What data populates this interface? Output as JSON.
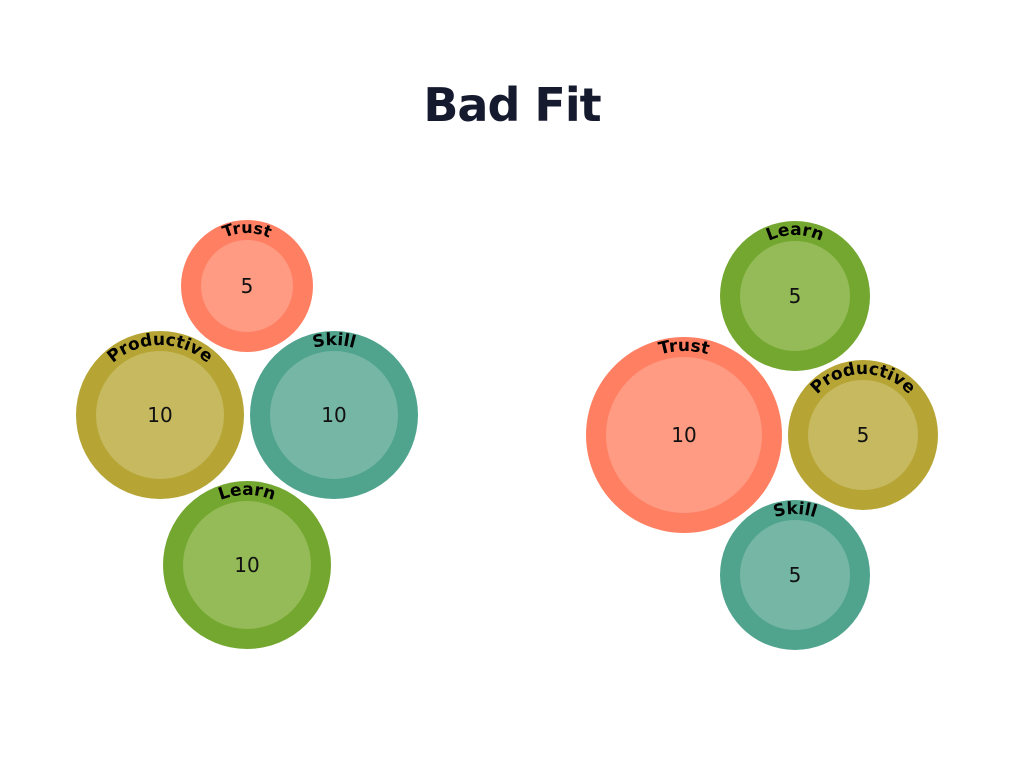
{
  "title": "Bad Fit",
  "colors": {
    "title": "#161a2e",
    "Trust": {
      "outer": "#ff7f62",
      "inner": "#ff9b83"
    },
    "Productive": {
      "outer": "#b6a534",
      "inner": "#c7b960"
    },
    "Skill": {
      "outer": "#50a48e",
      "inner": "#76b6a4"
    },
    "Learn": {
      "outer": "#73a72f",
      "inner": "#94bb57"
    }
  },
  "groups": [
    {
      "name": "left",
      "circles": [
        {
          "label": "Trust",
          "value": "5"
        },
        {
          "label": "Productive",
          "value": "10"
        },
        {
          "label": "Skill",
          "value": "10"
        },
        {
          "label": "Learn",
          "value": "10"
        }
      ]
    },
    {
      "name": "right",
      "circles": [
        {
          "label": "Learn",
          "value": "5"
        },
        {
          "label": "Trust",
          "value": "10"
        },
        {
          "label": "Productive",
          "value": "5"
        },
        {
          "label": "Skill",
          "value": "5"
        }
      ]
    }
  ]
}
